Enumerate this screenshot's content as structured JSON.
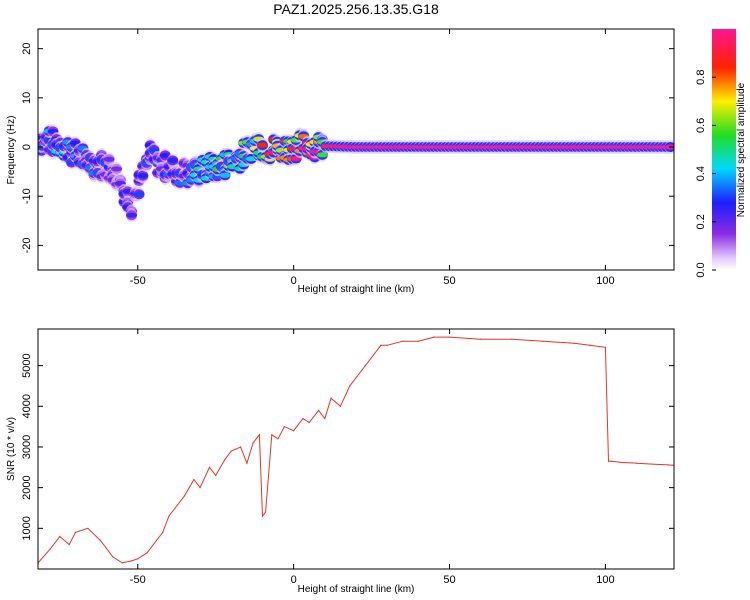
{
  "title": "PAZ1.2025.256.13.35.G18",
  "chart_data": [
    {
      "type": "heatmap",
      "xlabel": "Height of straight line (km)",
      "ylabel": "Frequency (Hz)",
      "xlim": [
        -82,
        122
      ],
      "ylim": [
        -25,
        24
      ],
      "xticks": [
        -50,
        0,
        50,
        100
      ],
      "yticks": [
        -20,
        -10,
        0,
        10,
        20
      ],
      "colorbar": {
        "label": "Normalized spectral amplitude",
        "range": [
          0.0,
          1.0
        ],
        "ticks": [
          "0.0",
          "0.2",
          "0.4",
          "0.6",
          "0.8"
        ]
      },
      "ridge": [
        {
          "x": -78,
          "f": 1.0,
          "a": 0.35
        },
        {
          "x": -74,
          "f": 0.5,
          "a": 0.4
        },
        {
          "x": -70,
          "f": -1.5,
          "a": 0.35
        },
        {
          "x": -66,
          "f": -3.0,
          "a": 0.3
        },
        {
          "x": -62,
          "f": -3.5,
          "a": 0.3
        },
        {
          "x": -58,
          "f": -4.5,
          "a": 0.25
        },
        {
          "x": -52,
          "f": -11.5,
          "a": 0.25
        },
        {
          "x": -46,
          "f": -2.0,
          "a": 0.3
        },
        {
          "x": -40,
          "f": -4.5,
          "a": 0.3
        },
        {
          "x": -34,
          "f": -5.5,
          "a": 0.35
        },
        {
          "x": -28,
          "f": -4.5,
          "a": 0.45
        },
        {
          "x": -22,
          "f": -3.5,
          "a": 0.5
        },
        {
          "x": -16,
          "f": -1.5,
          "a": 0.55
        },
        {
          "x": -12,
          "f": 1.0,
          "a": 0.6
        },
        {
          "x": -8,
          "f": -0.5,
          "a": 0.85
        },
        {
          "x": 0,
          "f": 0.0,
          "a": 0.9
        },
        {
          "x": 5,
          "f": 0.5,
          "a": 0.95
        },
        {
          "x": 10,
          "f": 0.2,
          "a": 0.95
        },
        {
          "x": 20,
          "f": 0.0,
          "a": 1.0
        },
        {
          "x": 50,
          "f": 0.0,
          "a": 1.0
        },
        {
          "x": 100,
          "f": 0.0,
          "a": 1.0
        },
        {
          "x": 122,
          "f": 0.0,
          "a": 1.0
        }
      ]
    },
    {
      "type": "line",
      "xlabel": "Height of straight line (km)",
      "ylabel": "SNR (10 * v/v)",
      "xlim": [
        -82,
        122
      ],
      "ylim": [
        0,
        5900
      ],
      "xticks": [
        -50,
        0,
        50,
        100
      ],
      "yticks": [
        1000,
        2000,
        3000,
        4000,
        5000
      ],
      "color": "#e8322a",
      "series": [
        {
          "x": [
            -82,
            -78,
            -75,
            -72,
            -70,
            -66,
            -62,
            -58,
            -55,
            -52,
            -50,
            -47,
            -44,
            -42,
            -40,
            -38,
            -35,
            -32,
            -30,
            -27,
            -25,
            -22,
            -20,
            -17,
            -15,
            -13,
            -11,
            -10,
            -9,
            -7,
            -5,
            -3,
            0,
            3,
            5,
            8,
            10,
            12,
            15,
            18,
            20,
            23,
            25,
            28,
            30,
            35,
            40,
            45,
            50,
            60,
            70,
            80,
            90,
            95,
            100,
            101,
            102,
            105,
            110,
            115,
            120,
            122
          ],
          "y": [
            150,
            500,
            800,
            600,
            900,
            1000,
            700,
            300,
            150,
            200,
            250,
            400,
            700,
            900,
            1300,
            1500,
            1800,
            2200,
            2000,
            2500,
            2300,
            2700,
            2900,
            3000,
            2600,
            3100,
            3300,
            1300,
            1400,
            3300,
            3200,
            3500,
            3400,
            3700,
            3600,
            3900,
            3700,
            4200,
            4000,
            4500,
            4700,
            5000,
            5200,
            5500,
            5500,
            5600,
            5600,
            5700,
            5700,
            5650,
            5650,
            5600,
            5550,
            5500,
            5450,
            2650,
            2650,
            2620,
            2600,
            2580,
            2560,
            2550
          ]
        }
      ]
    }
  ]
}
